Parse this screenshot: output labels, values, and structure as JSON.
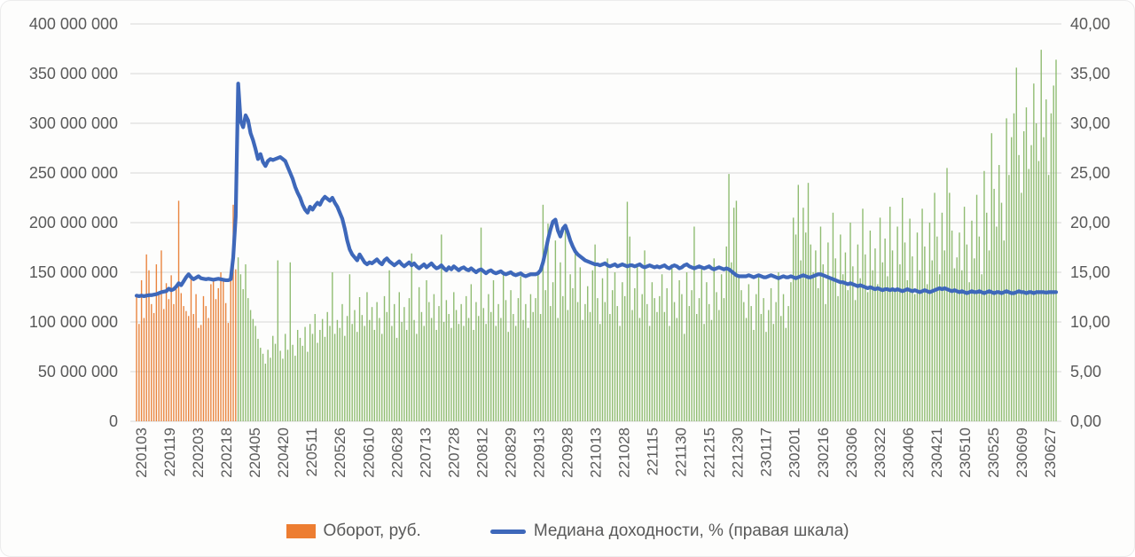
{
  "page": {
    "background": "#fdfdfc"
  },
  "legend": {
    "bar_label": "Оборот, руб.",
    "line_label": "Медиана доходности, % (правая шкала)"
  },
  "chart_data": {
    "type": "combo-bar-line",
    "title": "",
    "grid": "horizontal-only",
    "legend_position": "bottom",
    "colors": {
      "bar_orange": "#E9853F",
      "bar_green": "#90BC72",
      "legend_orange": "#ED7D31",
      "line_blue": "#3E68BA",
      "gridline": "#D6D6D6",
      "axis_text": "#595959"
    },
    "left_axis": {
      "min": 0,
      "max": 400000000,
      "tick_labels": [
        "400 000 000",
        "350 000 000",
        "300 000 000",
        "250 000 000",
        "200 000 000",
        "150 000 000",
        "100 000 000",
        "50 000 000",
        "0"
      ]
    },
    "right_axis": {
      "min": 0,
      "max": 40,
      "tick_labels": [
        "40,00",
        "35,00",
        "30,00",
        "25,00",
        "20,00",
        "15,00",
        "10,00",
        "5,00",
        "0,00"
      ]
    },
    "x_labels": [
      "220103",
      "220119",
      "220203",
      "220218",
      "220405",
      "220420",
      "220511",
      "220526",
      "220610",
      "220628",
      "220713",
      "220728",
      "220812",
      "220829",
      "220913",
      "220928",
      "221013",
      "221028",
      "221115",
      "221130",
      "221215",
      "221230",
      "230117",
      "230201",
      "230216",
      "230306",
      "230322",
      "230406",
      "230421",
      "230510",
      "230525",
      "230609",
      "230627"
    ],
    "bar_series": {
      "name": "Оборот, руб.",
      "axis": "left",
      "unit_note": "values in millions of rubles",
      "orange_until_index": 40,
      "values_mln_rub": [
        126,
        98,
        142,
        104,
        168,
        152,
        118,
        109,
        158,
        128,
        172,
        113,
        139,
        123,
        147,
        118,
        133,
        222,
        129,
        116,
        111,
        106,
        144,
        108,
        128,
        94,
        97,
        126,
        116,
        104,
        138,
        143,
        123,
        134,
        150,
        141,
        119,
        99,
        148,
        218,
        153,
        165,
        148,
        133,
        158,
        124,
        112,
        103,
        96,
        83,
        74,
        68,
        58,
        72,
        64,
        86,
        78,
        162,
        71,
        63,
        88,
        72,
        160,
        77,
        66,
        92,
        84,
        76,
        95,
        70,
        98,
        88,
        108,
        79,
        92,
        103,
        85,
        110,
        96,
        150,
        88,
        102,
        94,
        118,
        86,
        106,
        148,
        98,
        112,
        90,
        125,
        107,
        96,
        130,
        102,
        115,
        92,
        120,
        104,
        88,
        126,
        110,
        152,
        96,
        118,
        84,
        130,
        100,
        115,
        92,
        124,
        169,
        102,
        88,
        135,
        110,
        96,
        142,
        120,
        104,
        128,
        92,
        116,
        188,
        100,
        122,
        108,
        94,
        130,
        112,
        98,
        118,
        96,
        126,
        104,
        138,
        92,
        120,
        106,
        195,
        114,
        98,
        128,
        110,
        142,
        96,
        118,
        104,
        150,
        122,
        90,
        132,
        108,
        96,
        124,
        146,
        102,
        118,
        94,
        128,
        110,
        124,
        150,
        108,
        218,
        132,
        199,
        116,
        140,
        182,
        104,
        160,
        126,
        197,
        112,
        148,
        134,
        170,
        120,
        155,
        102,
        118,
        136,
        110,
        152,
        178,
        124,
        98,
        144,
        120,
        164,
        108,
        132,
        150,
        116,
        96,
        140,
        126,
        221,
        186,
        112,
        134,
        158,
        104,
        128,
        172,
        118,
        96,
        140,
        124,
        110,
        126,
        148,
        110,
        134,
        96,
        158,
        120,
        104,
        142,
        128,
        88,
        150,
        116,
        132,
        196,
        108,
        124,
        156,
        98,
        140,
        118,
        102,
        164,
        130,
        112,
        148,
        124,
        176,
        249,
        160,
        215,
        222,
        148,
        132,
        120,
        104,
        138,
        116,
        92,
        128,
        146,
        108,
        124,
        90,
        112,
        134,
        98,
        120,
        150,
        106,
        128,
        94,
        116,
        140,
        205,
        188,
        238,
        162,
        215,
        190,
        240,
        178,
        150,
        172,
        134,
        196,
        158,
        118,
        180,
        142,
        210,
        164,
        126,
        188,
        148,
        170,
        132,
        200,
        156,
        122,
        178,
        144,
        214,
        168,
        130,
        192,
        152,
        174,
        138,
        205,
        160,
        184,
        146,
        216,
        172,
        134,
        196,
        158,
        225,
        180,
        142,
        204,
        166,
        128,
        190,
        152,
        214,
        176,
        138,
        200,
        162,
        230,
        186,
        148,
        210,
        172,
        255,
        230,
        192,
        154,
        165,
        190,
        152,
        216,
        178,
        140,
        202,
        164,
        228,
        186,
        148,
        252,
        210,
        172,
        290,
        234,
        196,
        258,
        220,
        182,
        305,
        248,
        286,
        310,
        356,
        268,
        230,
        292,
        316,
        254,
        278,
        340,
        300,
        262,
        374,
        286,
        324,
        248,
        310,
        338,
        364
      ]
    },
    "line_series": {
      "name": "Медиана доходности, % (правая шкала)",
      "axis": "right",
      "unit_note": "percent",
      "values_pct": [
        12.65,
        12.6,
        12.65,
        12.6,
        12.65,
        12.7,
        12.7,
        12.75,
        12.8,
        12.9,
        13.0,
        13.05,
        13.1,
        13.35,
        13.2,
        13.3,
        13.55,
        13.9,
        13.7,
        14.1,
        14.5,
        14.8,
        14.5,
        14.3,
        14.45,
        14.6,
        14.4,
        14.35,
        14.3,
        14.35,
        14.3,
        14.25,
        14.3,
        14.35,
        14.3,
        14.25,
        14.2,
        14.2,
        14.3,
        16.5,
        20.6,
        34.0,
        30.2,
        29.6,
        30.8,
        30.3,
        29.0,
        28.3,
        27.4,
        26.4,
        26.9,
        26.1,
        25.7,
        26.2,
        26.4,
        26.3,
        26.4,
        26.5,
        26.6,
        26.4,
        26.2,
        25.6,
        25.0,
        24.4,
        23.6,
        23.0,
        22.5,
        21.8,
        21.3,
        21.0,
        21.6,
        21.3,
        21.7,
        22.0,
        21.8,
        22.3,
        22.6,
        22.4,
        22.2,
        22.5,
        22.0,
        21.6,
        21.0,
        20.4,
        19.4,
        18.2,
        17.3,
        16.8,
        16.5,
        16.2,
        16.8,
        16.4,
        16.0,
        15.8,
        16.0,
        15.9,
        16.1,
        16.3,
        16.0,
        15.8,
        16.2,
        16.4,
        16.1,
        15.9,
        15.7,
        15.9,
        16.1,
        15.8,
        15.6,
        15.8,
        16.0,
        15.7,
        15.9,
        15.6,
        15.4,
        15.6,
        15.8,
        15.5,
        15.7,
        15.9,
        15.6,
        15.4,
        15.5,
        15.7,
        15.4,
        15.2,
        15.5,
        15.3,
        15.6,
        15.4,
        15.2,
        15.4,
        15.5,
        15.3,
        15.2,
        15.4,
        15.2,
        15.0,
        15.2,
        15.3,
        15.1,
        14.9,
        15.1,
        15.2,
        15.0,
        14.9,
        15.0,
        15.1,
        14.9,
        14.8,
        14.9,
        15.0,
        14.8,
        14.7,
        14.8,
        14.9,
        14.7,
        14.6,
        14.7,
        14.8,
        14.8,
        14.8,
        14.9,
        15.2,
        16.0,
        17.1,
        18.3,
        19.3,
        20.1,
        20.3,
        19.2,
        18.6,
        19.4,
        19.7,
        19.0,
        18.2,
        17.6,
        17.1,
        16.8,
        16.6,
        16.4,
        16.2,
        16.1,
        16.0,
        15.9,
        15.8,
        15.8,
        15.7,
        15.8,
        15.9,
        15.7,
        15.6,
        15.7,
        15.8,
        15.6,
        15.7,
        15.8,
        15.7,
        15.6,
        15.7,
        15.7,
        15.6,
        15.7,
        15.8,
        15.6,
        15.5,
        15.6,
        15.7,
        15.6,
        15.5,
        15.6,
        15.5,
        15.6,
        15.7,
        15.5,
        15.4,
        15.6,
        15.7,
        15.6,
        15.4,
        15.5,
        15.7,
        15.8,
        15.6,
        15.5,
        15.4,
        15.5,
        15.6,
        15.5,
        15.4,
        15.5,
        15.6,
        15.4,
        15.3,
        15.4,
        15.5,
        15.4,
        15.3,
        15.4,
        15.3,
        15.1,
        14.9,
        14.7,
        14.6,
        14.6,
        14.6,
        14.6,
        14.7,
        14.6,
        14.5,
        14.6,
        14.7,
        14.6,
        14.5,
        14.5,
        14.6,
        14.7,
        14.6,
        14.5,
        14.4,
        14.5,
        14.6,
        14.5,
        14.5,
        14.6,
        14.5,
        14.4,
        14.5,
        14.6,
        14.7,
        14.6,
        14.5,
        14.5,
        14.6,
        14.7,
        14.8,
        14.8,
        14.7,
        14.6,
        14.5,
        14.4,
        14.3,
        14.2,
        14.1,
        14.0,
        14.0,
        13.9,
        13.8,
        13.9,
        13.8,
        13.7,
        13.6,
        13.7,
        13.6,
        13.5,
        13.4,
        13.5,
        13.4,
        13.3,
        13.4,
        13.3,
        13.2,
        13.3,
        13.3,
        13.2,
        13.3,
        13.2,
        13.3,
        13.2,
        13.1,
        13.2,
        13.3,
        13.2,
        13.1,
        13.2,
        13.1,
        13.0,
        13.1,
        13.2,
        13.1,
        13.0,
        13.1,
        13.2,
        13.3,
        13.4,
        13.3,
        13.4,
        13.3,
        13.2,
        13.1,
        13.2,
        13.1,
        13.0,
        13.1,
        13.0,
        12.9,
        13.0,
        13.1,
        13.0,
        13.0,
        13.1,
        13.0,
        12.9,
        13.0,
        13.1,
        13.0,
        12.9,
        13.0,
        13.0,
        12.9,
        13.0,
        13.1,
        13.0,
        12.9,
        12.9,
        13.0,
        13.1,
        13.0,
        13.0,
        12.9,
        13.0,
        13.0,
        12.9,
        13.0,
        13.0,
        13.0,
        13.0,
        12.95,
        13.0,
        13.0,
        13.0,
        13.0
      ]
    }
  }
}
